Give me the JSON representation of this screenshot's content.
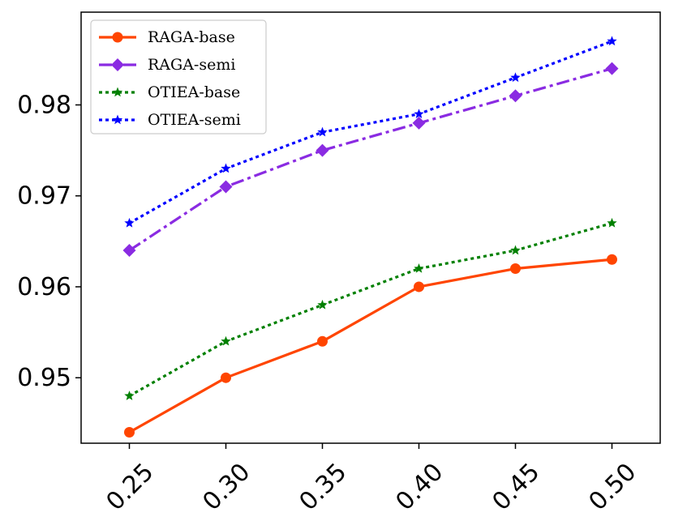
{
  "chart_data": {
    "type": "line",
    "title": "",
    "xlabel": "",
    "ylabel": "",
    "x": [
      "0.25",
      "0.30",
      "0.35",
      "0.40",
      "0.45",
      "0.50"
    ],
    "xlim": [
      0.225,
      0.525
    ],
    "ylim": [
      0.9428,
      0.9902
    ],
    "yticks": [
      "0.95",
      "0.96",
      "0.97",
      "0.98"
    ],
    "ytick_values": [
      0.95,
      0.96,
      0.97,
      0.98
    ],
    "grid": false,
    "legend_position": "top-left",
    "series": [
      {
        "name": "RAGA-base",
        "color": "#ff4500",
        "linestyle": "solid",
        "marker": "circle",
        "values": [
          0.944,
          0.95,
          0.954,
          0.96,
          0.962,
          0.963
        ]
      },
      {
        "name": "RAGA-semi",
        "color": "#8a2be2",
        "linestyle": "dashdot",
        "marker": "diamond",
        "values": [
          0.964,
          0.971,
          0.975,
          0.978,
          0.981,
          0.984
        ]
      },
      {
        "name": "OTIEA-base",
        "color": "#008000",
        "linestyle": "dotted",
        "marker": "star",
        "values": [
          0.948,
          0.954,
          0.958,
          0.962,
          0.964,
          0.967
        ]
      },
      {
        "name": "OTIEA-semi",
        "color": "#0000ff",
        "linestyle": "dotted",
        "marker": "star",
        "values": [
          0.967,
          0.973,
          0.977,
          0.979,
          0.983,
          0.987
        ]
      }
    ]
  }
}
